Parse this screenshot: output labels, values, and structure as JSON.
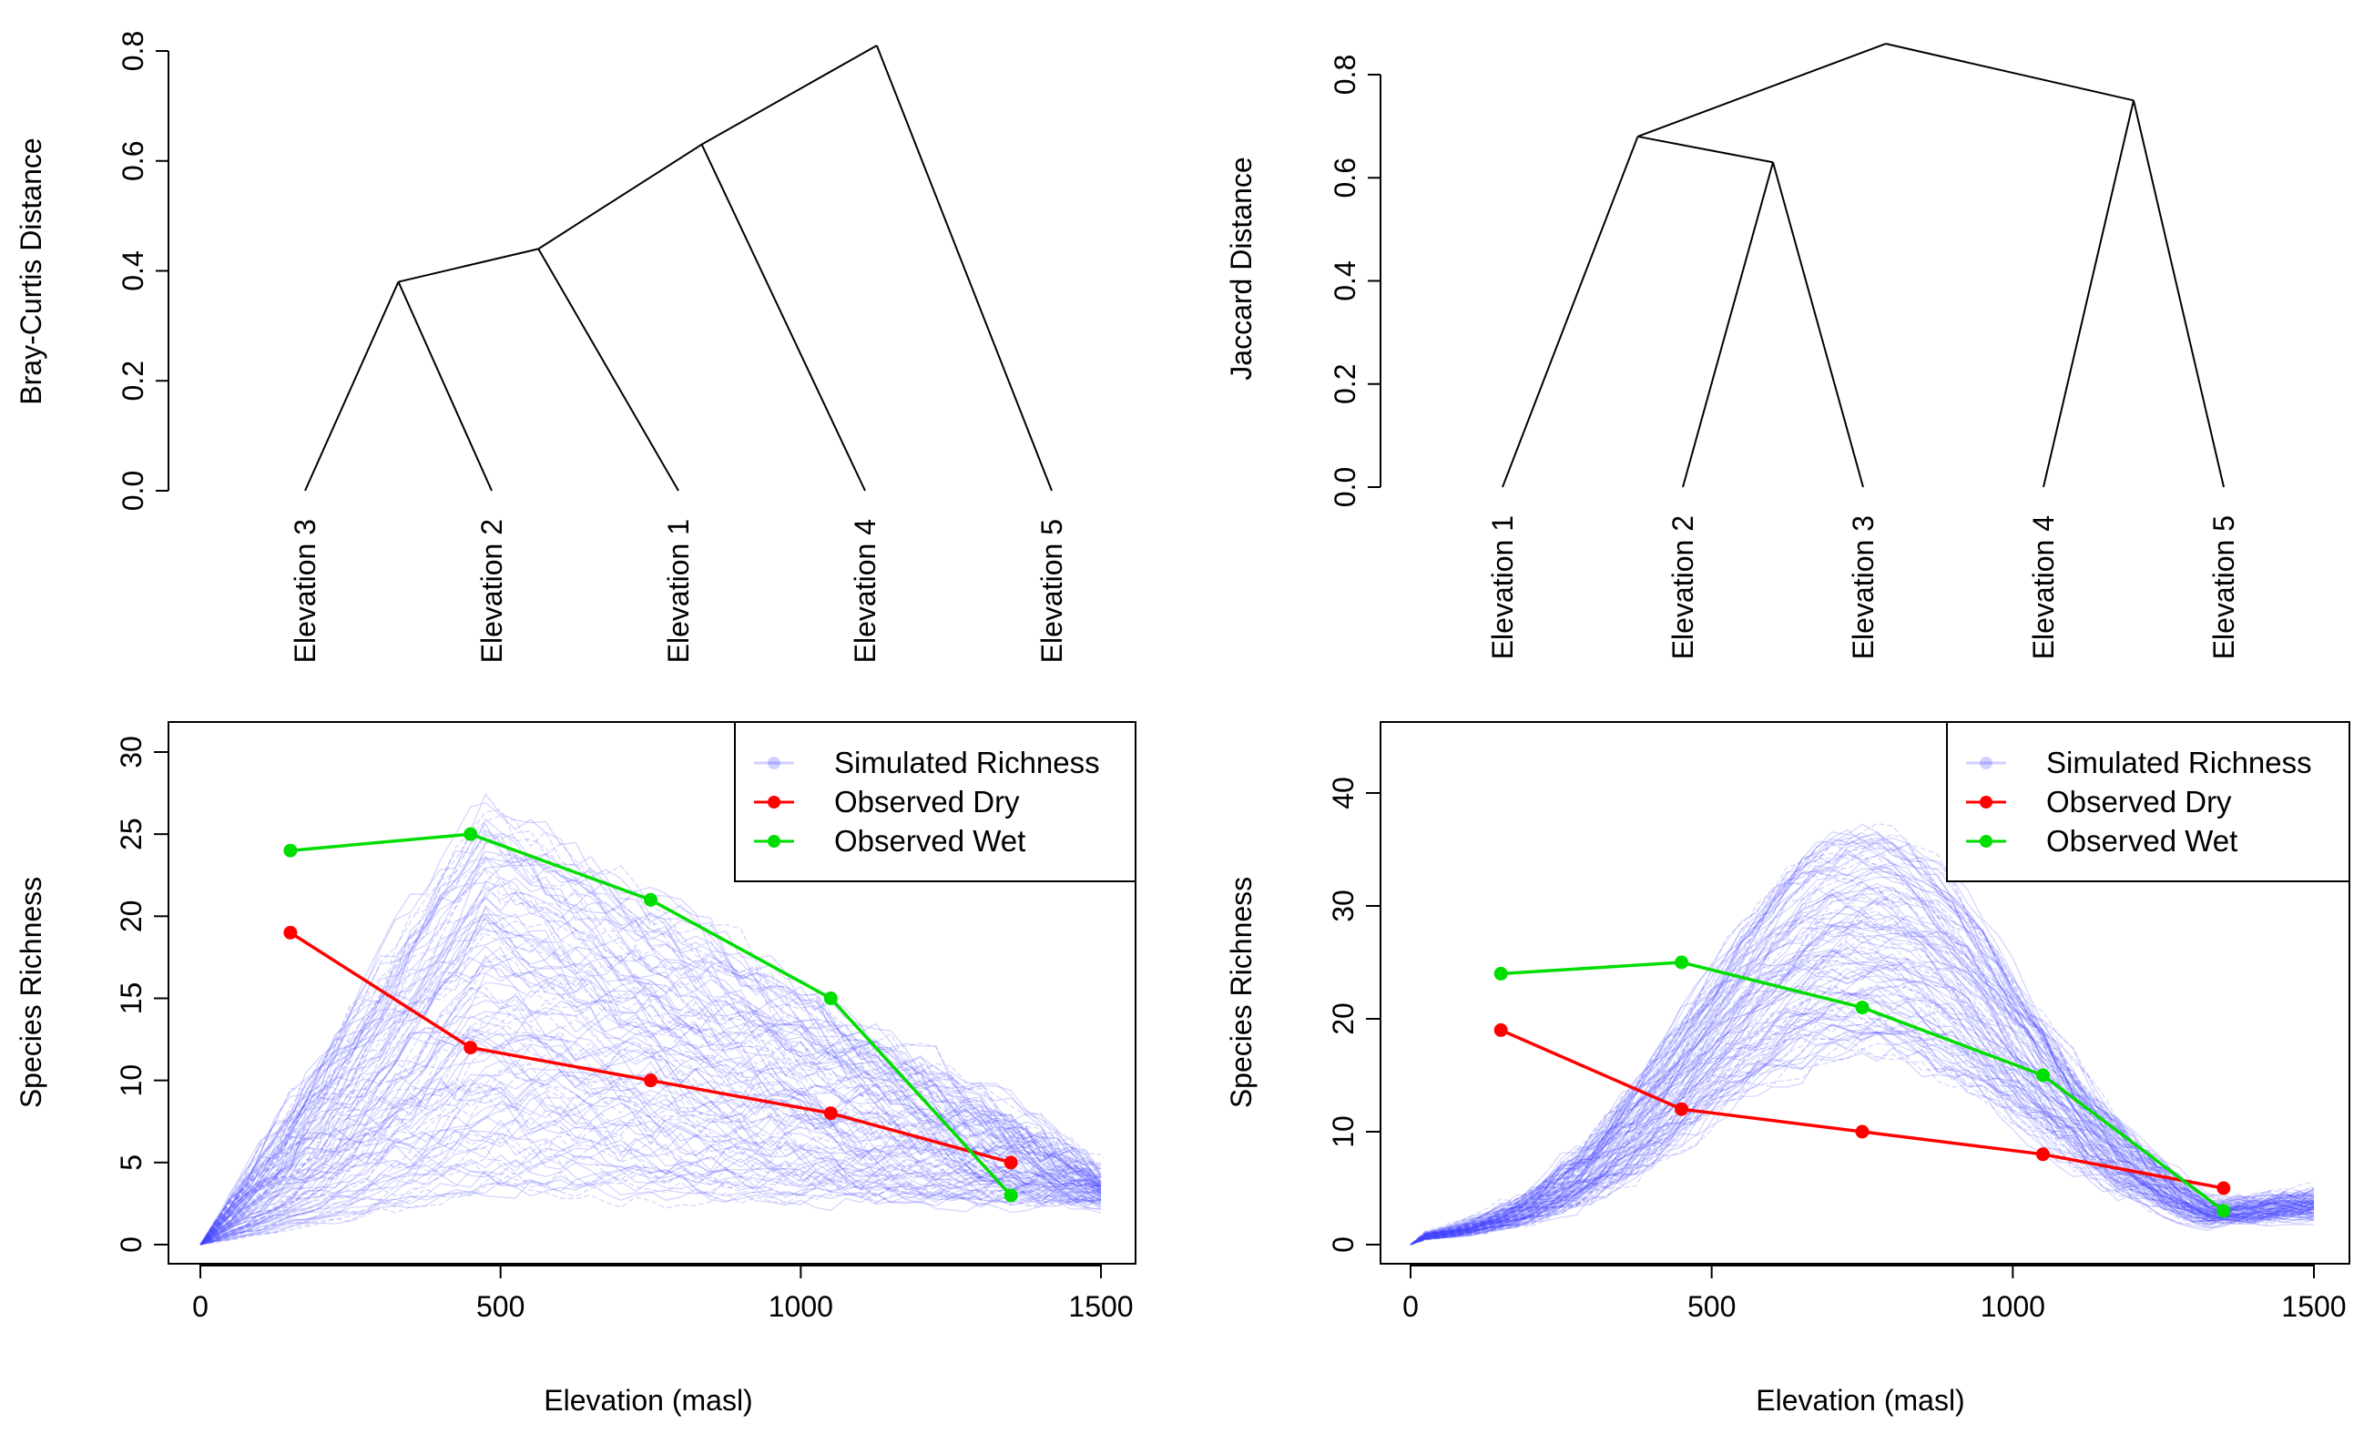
{
  "colors": {
    "axis": "#000000",
    "simulated": "#0000ff",
    "dry": "#ff0000",
    "wet": "#00dd00"
  },
  "chart_data": [
    {
      "id": "bray-curtis-dendrogram",
      "type": "dendrogram",
      "ylabel": "Bray-Curtis Distance",
      "ylim": [
        0,
        0.8
      ],
      "yticks": [
        0.0,
        0.2,
        0.4,
        0.6,
        0.8
      ],
      "ytick_labels": [
        "0.0",
        "0.2",
        "0.4",
        "0.6",
        "0.8"
      ],
      "leaves": [
        "Elevation 3",
        "Elevation 2",
        "Elevation 1",
        "Elevation 4",
        "Elevation 5"
      ],
      "merges": [
        {
          "a": "leaf:0",
          "b": "leaf:1",
          "height": 0.38
        },
        {
          "a": "node:0",
          "b": "leaf:2",
          "height": 0.44
        },
        {
          "a": "node:1",
          "b": "leaf:3",
          "height": 0.63
        },
        {
          "a": "node:2",
          "b": "leaf:4",
          "height": 0.81
        }
      ]
    },
    {
      "id": "jaccard-dendrogram",
      "type": "dendrogram",
      "ylabel": "Jaccard Distance",
      "ylim": [
        0,
        0.8
      ],
      "yticks": [
        0.0,
        0.2,
        0.4,
        0.6,
        0.8
      ],
      "ytick_labels": [
        "0.0",
        "0.2",
        "0.4",
        "0.6",
        "0.8"
      ],
      "leaves": [
        "Elevation 1",
        "Elevation 2",
        "Elevation 3",
        "Elevation 4",
        "Elevation 5"
      ],
      "merges": [
        {
          "a": "leaf:1",
          "b": "leaf:2",
          "height": 0.63
        },
        {
          "a": "leaf:0",
          "b": "node:0",
          "height": 0.68
        },
        {
          "a": "leaf:3",
          "b": "leaf:4",
          "height": 0.75
        },
        {
          "a": "node:1",
          "b": "node:2",
          "height": 0.86
        }
      ]
    },
    {
      "id": "richness-linear",
      "type": "line",
      "xlabel": "Elevation (masl)",
      "ylabel": "Species Richness",
      "xlim": [
        0,
        1500
      ],
      "ylim": [
        0,
        30
      ],
      "xticks": [
        0,
        500,
        1000,
        1500
      ],
      "yticks": [
        0,
        5,
        10,
        15,
        20,
        25,
        30
      ],
      "simulated": {
        "name": "Simulated Richness",
        "shape": "linear",
        "peak_x": 480,
        "peak_range": [
          3,
          27
        ],
        "end_range": [
          2.5,
          4.5
        ]
      },
      "legend": [
        "Simulated Richness",
        "Observed Dry",
        "Observed Wet"
      ],
      "legend_position": "top-right",
      "series": [
        {
          "name": "Observed Dry",
          "x": [
            150,
            450,
            750,
            1050,
            1350
          ],
          "y": [
            19,
            12,
            10,
            8,
            5
          ]
        },
        {
          "name": "Observed Wet",
          "x": [
            150,
            450,
            750,
            1050,
            1350
          ],
          "y": [
            24,
            25,
            21,
            15,
            3
          ]
        }
      ]
    },
    {
      "id": "richness-gaussian",
      "type": "line",
      "xlabel": "Elevation (masl)",
      "ylabel": "Species Richness",
      "xlim": [
        0,
        1500
      ],
      "ylim": [
        0,
        40
      ],
      "xticks": [
        0,
        500,
        1000,
        1500
      ],
      "yticks": [
        0,
        10,
        20,
        30,
        40
      ],
      "simulated": {
        "name": "Simulated Richness",
        "shape": "gaussian",
        "peak_x": 750,
        "sd": 270,
        "peak_range": [
          17,
          37
        ],
        "end_range": [
          2.5,
          4.5
        ]
      },
      "legend": [
        "Simulated Richness",
        "Observed Dry",
        "Observed Wet"
      ],
      "legend_position": "top-right",
      "series": [
        {
          "name": "Observed Dry",
          "x": [
            150,
            450,
            750,
            1050,
            1350
          ],
          "y": [
            19,
            12,
            10,
            8,
            5
          ]
        },
        {
          "name": "Observed Wet",
          "x": [
            150,
            450,
            750,
            1050,
            1350
          ],
          "y": [
            24,
            25,
            21,
            15,
            3
          ]
        }
      ]
    }
  ]
}
